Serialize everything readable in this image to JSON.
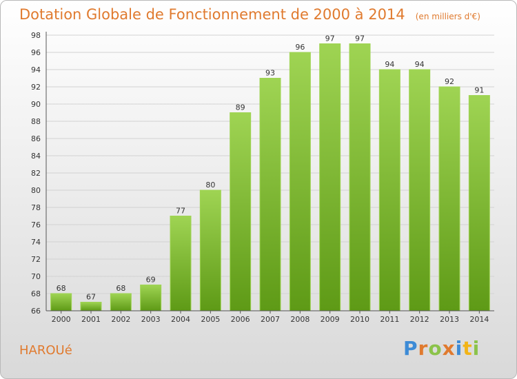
{
  "chart_data": {
    "type": "bar",
    "title": "Dotation Globale de Fonctionnement de 2000 à 2014",
    "unit": "(en milliers d'€)",
    "categories": [
      "2000",
      "2001",
      "2002",
      "2003",
      "2004",
      "2005",
      "2006",
      "2007",
      "2008",
      "2009",
      "2010",
      "2011",
      "2012",
      "2013",
      "2014"
    ],
    "values": [
      68,
      67,
      68,
      69,
      77,
      80,
      89,
      93,
      96,
      97,
      97,
      94,
      94,
      92,
      91
    ],
    "ylim": [
      66,
      98
    ],
    "yticks": [
      66,
      68,
      70,
      72,
      74,
      76,
      78,
      80,
      82,
      84,
      86,
      88,
      90,
      92,
      94,
      96,
      98
    ],
    "grid": true,
    "bar_color": "#7cbd2c",
    "bar_color_light": "#9fd453",
    "bar_color_dark": "#5e9a16"
  },
  "commune": "HAROUé",
  "logo": {
    "text": "Proxiti",
    "letter_colors": [
      "#3d8bd6",
      "#e07a2e",
      "#8bc34a",
      "#e07a2e",
      "#3d8bd6",
      "#f2b418",
      "#8bc34a"
    ]
  }
}
